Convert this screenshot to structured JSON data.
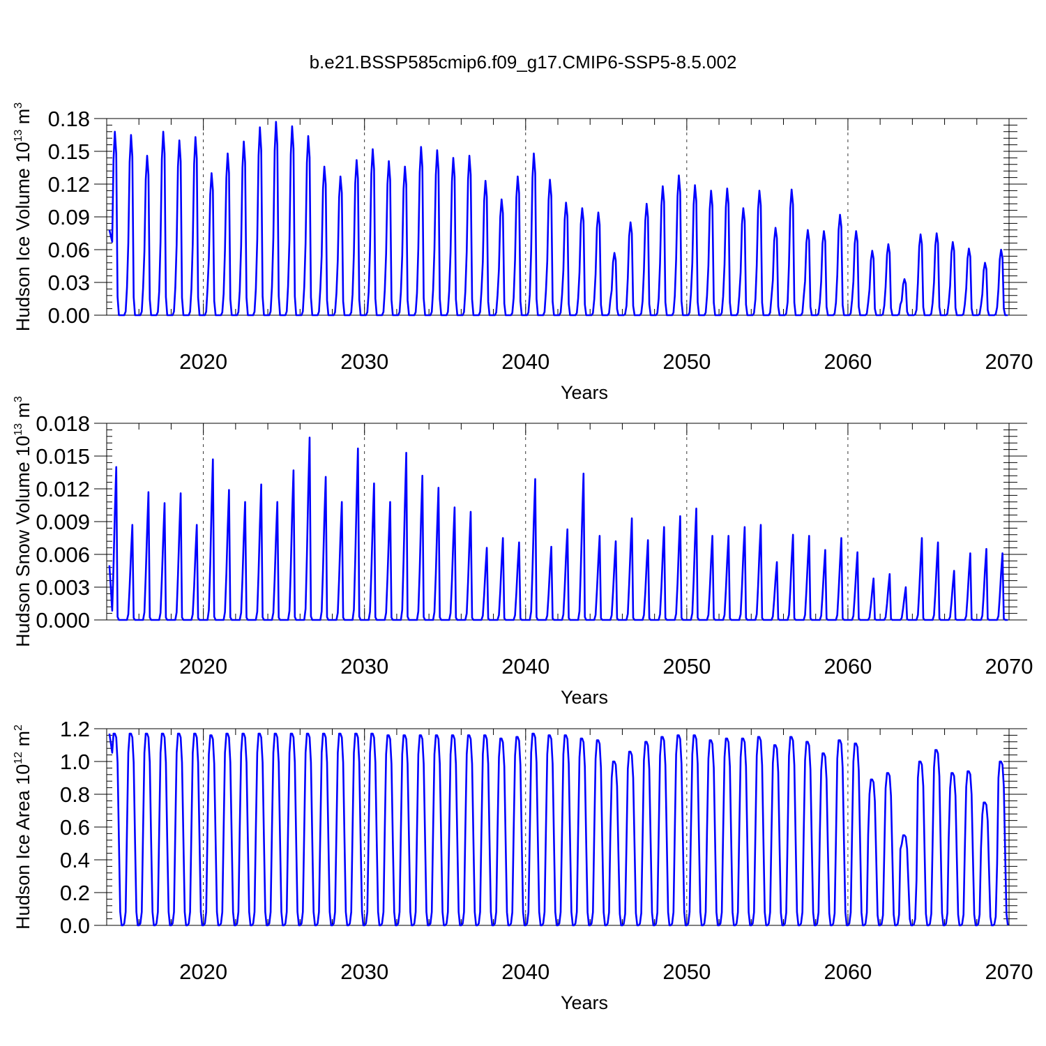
{
  "figure": {
    "title": "b.e21.BSSP585cmip6.f09_g17.CMIP6-SSP5-8.5.002",
    "line_color": "#0000ff"
  },
  "chart_data": [
    {
      "type": "line",
      "ylabel_main": "Hudson Ice Volume 10",
      "ylabel_exp": "13",
      "ylabel_unit": "m",
      "ylabel_unit_exp": "3",
      "xlabel": "Years",
      "xlim": [
        2014,
        2070
      ],
      "ylim": [
        0,
        0.18
      ],
      "yticks": [
        "0.00",
        "0.03",
        "0.06",
        "0.09",
        "0.12",
        "0.15",
        "0.18"
      ],
      "xticks": [
        "2020",
        "2030",
        "2040",
        "2050",
        "2060",
        "2070"
      ],
      "seasonal": "peak",
      "start_value": 0.078,
      "annual_peaks": [
        0.168,
        0.165,
        0.146,
        0.168,
        0.16,
        0.163,
        0.13,
        0.148,
        0.159,
        0.172,
        0.177,
        0.173,
        0.164,
        0.136,
        0.127,
        0.142,
        0.152,
        0.141,
        0.136,
        0.154,
        0.151,
        0.144,
        0.146,
        0.123,
        0.106,
        0.127,
        0.148,
        0.124,
        0.103,
        0.098,
        0.094,
        0.057,
        0.085,
        0.102,
        0.118,
        0.128,
        0.119,
        0.114,
        0.116,
        0.098,
        0.114,
        0.08,
        0.115,
        0.078,
        0.077,
        0.092,
        0.077,
        0.059,
        0.065,
        0.033,
        0.074,
        0.075,
        0.067,
        0.061,
        0.048,
        0.06
      ]
    },
    {
      "type": "line",
      "ylabel_main": "Hudson Snow Volume 10",
      "ylabel_exp": "13",
      "ylabel_unit": "m",
      "ylabel_unit_exp": "3",
      "xlabel": "Years",
      "xlim": [
        2014,
        2070
      ],
      "ylim": [
        0,
        0.018
      ],
      "yticks": [
        "0.000",
        "0.003",
        "0.006",
        "0.009",
        "0.012",
        "0.015",
        "0.018"
      ],
      "xticks": [
        "2020",
        "2030",
        "2040",
        "2050",
        "2060",
        "2070"
      ],
      "seasonal": "spike",
      "start_value": 0.005,
      "annual_peaks": [
        0.014,
        0.0087,
        0.0117,
        0.0107,
        0.0116,
        0.0087,
        0.0147,
        0.0119,
        0.0108,
        0.0124,
        0.0108,
        0.0137,
        0.0167,
        0.0131,
        0.0108,
        0.0157,
        0.0125,
        0.0108,
        0.0153,
        0.0132,
        0.0121,
        0.0103,
        0.0099,
        0.0066,
        0.0075,
        0.0071,
        0.0129,
        0.0067,
        0.0083,
        0.0134,
        0.0077,
        0.0072,
        0.0093,
        0.0073,
        0.0085,
        0.0095,
        0.0102,
        0.0077,
        0.0077,
        0.0085,
        0.0087,
        0.0053,
        0.0078,
        0.0077,
        0.0064,
        0.0075,
        0.0062,
        0.0038,
        0.0042,
        0.003,
        0.0075,
        0.0071,
        0.0045,
        0.0061,
        0.0065,
        0.0061
      ]
    },
    {
      "type": "line",
      "ylabel_main": "Hudson Ice Area 10",
      "ylabel_exp": "12",
      "ylabel_unit": "m",
      "ylabel_unit_exp": "2",
      "xlabel": "Years",
      "xlim": [
        2014,
        2070
      ],
      "ylim": [
        0,
        1.2
      ],
      "yticks": [
        "0.0",
        "0.2",
        "0.4",
        "0.6",
        "0.8",
        "1.0",
        "1.2"
      ],
      "xticks": [
        "2020",
        "2030",
        "2040",
        "2050",
        "2060",
        "2070"
      ],
      "seasonal": "plateau",
      "start_value": 1.17,
      "annual_peaks": [
        1.17,
        1.17,
        1.17,
        1.17,
        1.17,
        1.17,
        1.16,
        1.17,
        1.17,
        1.17,
        1.17,
        1.17,
        1.17,
        1.17,
        1.17,
        1.17,
        1.17,
        1.16,
        1.16,
        1.16,
        1.16,
        1.16,
        1.16,
        1.16,
        1.14,
        1.15,
        1.17,
        1.16,
        1.16,
        1.14,
        1.13,
        1.0,
        1.06,
        1.12,
        1.15,
        1.16,
        1.16,
        1.13,
        1.14,
        1.14,
        1.15,
        1.1,
        1.15,
        1.12,
        1.05,
        1.13,
        1.11,
        0.89,
        0.93,
        0.55,
        1.0,
        1.07,
        0.93,
        0.94,
        0.75,
        1.0
      ]
    }
  ]
}
